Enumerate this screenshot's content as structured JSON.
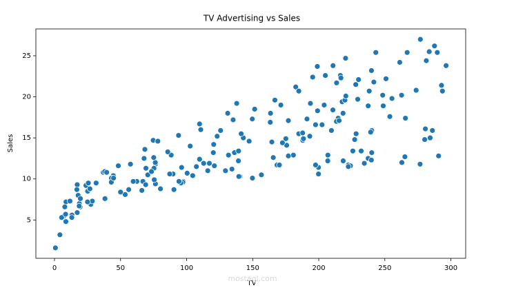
{
  "chart_data": {
    "type": "scatter",
    "title": "TV Advertising vs Sales",
    "x_label": "TV",
    "y_label": "Sales",
    "watermark": "mostaql.com",
    "color": "#1f77b4",
    "x": [
      230.1,
      44.5,
      17.2,
      151.5,
      180.8,
      8.7,
      57.5,
      120.2,
      8.6,
      199.8,
      66.1,
      214.7,
      23.8,
      97.5,
      204.1,
      195.4,
      67.8,
      281.4,
      69.2,
      147.3,
      218.4,
      237.4,
      13.2,
      228.3,
      62.3,
      262.9,
      142.9,
      240.1,
      248.8,
      70.6,
      292.9,
      112.9,
      97.2,
      265.6,
      95.7,
      290.7,
      266.9,
      74.7,
      43.1,
      228,
      202.5,
      177,
      293.6,
      206.9,
      25.1,
      175.1,
      89.7,
      239.9,
      227.2,
      66.9,
      199.8,
      100.4,
      216.4,
      182.6,
      262.7,
      198.9,
      7.3,
      136.2,
      210.8,
      210.7,
      53.5,
      261.3,
      239.3,
      102.7,
      131.1,
      69,
      31.5,
      139.3,
      237.4,
      216.8,
      199.1,
      109.8,
      26.8,
      129.4,
      213.4,
      16.9,
      27.5,
      120.5,
      5.4,
      116,
      76.4,
      239.8,
      75.3,
      68.4,
      213.5,
      193.2,
      76.3,
      110.7,
      88.3,
      109.8,
      134.3,
      28.6,
      217.7,
      250.9,
      107.4,
      163.3,
      197.6,
      184.9,
      289.7,
      135.2,
      222.4,
      296.4,
      280.2,
      187.9,
      238.2,
      137.9,
      25,
      90.4,
      13.1,
      255.4,
      225.8,
      241.7,
      175.7,
      209.6,
      78.2,
      75.1,
      139.2,
      76.4,
      125.7,
      19.4,
      141.3,
      18.8,
      224,
      123.1,
      229.5,
      87.2,
      7.8,
      80.2,
      220.3,
      59.6,
      0.7,
      265.2,
      8.4,
      219.8,
      36.9,
      48.3,
      25.6,
      273.7,
      43,
      184.9,
      73.4,
      193.7,
      220.5,
      104.6,
      96.2,
      140.3,
      240.1,
      243.2,
      38,
      44.7,
      280.7,
      121,
      197.6,
      171.3,
      187.8,
      4.1,
      93.9,
      149.8,
      11.7,
      131.7,
      172.5,
      85.7,
      188.4,
      163.5,
      117.2,
      234.5,
      17.9,
      206.8,
      215.4,
      284.3,
      50,
      164.5,
      19.6,
      168.4,
      222.4,
      276.9,
      248.4,
      170.2,
      276.7,
      165.6,
      156.6,
      218.5,
      56.2,
      287.6,
      253.8,
      205,
      139.5,
      191.1,
      286,
      18.7,
      39.5,
      75.5,
      17.2,
      166.8,
      149.7,
      38.2,
      94.2,
      177,
      283.6,
      232.1
    ],
    "values": [
      22.1,
      10.4,
      9.3,
      18.5,
      12.9,
      7.2,
      11.8,
      13.2,
      4.8,
      10.6,
      8.6,
      17.4,
      9.2,
      9.7,
      19,
      22.4,
      12.5,
      24.4,
      11.3,
      14.6,
      18,
      12.5,
      5.6,
      15.5,
      9.7,
      12,
      15,
      15.9,
      18.9,
      10.5,
      21.4,
      11.9,
      9.6,
      17.4,
      9.5,
      12.8,
      25.4,
      14.7,
      10.1,
      21.5,
      16.6,
      17.1,
      20.7,
      12.9,
      8.5,
      14.9,
      10.6,
      23.2,
      14.8,
      9.7,
      11.4,
      10.7,
      22.6,
      21.2,
      20.2,
      23.7,
      5.5,
      13.2,
      23.8,
      18.4,
      8.1,
      24.2,
      15.7,
      14,
      18,
      9.3,
      9.5,
      13.4,
      18.9,
      22.3,
      18.3,
      12.4,
      8.8,
      11,
      17,
      8.7,
      6.9,
      14.2,
      5.3,
      11,
      11.8,
      12.3,
      11.3,
      13.6,
      21.7,
      15.2,
      12,
      16,
      12.9,
      16.7,
      11.2,
      7.3,
      19.4,
      22.2,
      11.5,
      16.9,
      11.7,
      15.5,
      25.4,
      17.2,
      11.7,
      23.8,
      14.8,
      14.7,
      20.7,
      19.2,
      7.2,
      8.7,
      5.3,
      19.8,
      13.4,
      21.8,
      14.1,
      15.9,
      14.6,
      12.6,
      12.2,
      9.4,
      15.9,
      6.6,
      15.5,
      7,
      11.6,
      15.2,
      19.7,
      10.6,
      6.6,
      8.8,
      24.7,
      9.7,
      1.6,
      12.7,
      5.7,
      19.6,
      10.8,
      11.6,
      9.5,
      20.8,
      9.6,
      20.7,
      10.9,
      19.2,
      20.1,
      10.4,
      11.4,
      10.3,
      13.2,
      25.4,
      10.9,
      10.1,
      16.1,
      11.6,
      16.6,
      19,
      15.6,
      3.2,
      15.3,
      10.1,
      7.3,
      12.9,
      14.4,
      13.3,
      14.9,
      18,
      11.9,
      11.9,
      8,
      12.2,
      17.1,
      15,
      8.4,
      14.5,
      7.6,
      11.7,
      11.5,
      27,
      20.2,
      11.7,
      11.8,
      12.6,
      10.5,
      12.2,
      8.7,
      26.2,
      17.6,
      22.6,
      10.3,
      17.3,
      15.9,
      6.7,
      10.8,
      9.9,
      5.9,
      19.6,
      17.3,
      7.6,
      9.7,
      12.8,
      25.5,
      13.4
    ],
    "xlim": [
      -14.1,
      311.2
    ],
    "ylim": [
      0.33,
      28.27
    ],
    "xticks": [
      0,
      50,
      100,
      150,
      200,
      250,
      300
    ],
    "yticks": [
      5,
      10,
      15,
      20,
      25
    ]
  }
}
